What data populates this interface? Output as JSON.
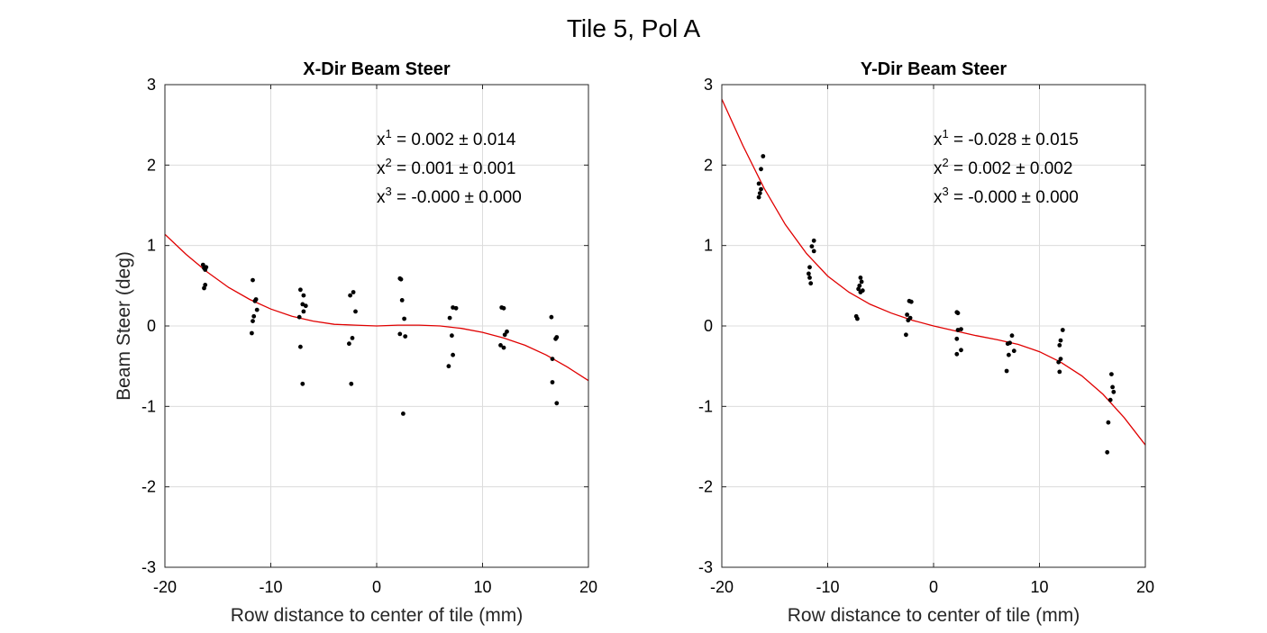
{
  "figure_title": "Tile 5, Pol A",
  "colors": {
    "fit": "#e00000",
    "points": "#000000",
    "grid": "#dcdcdc",
    "axes": "#262626"
  },
  "chart_data": [
    {
      "type": "scatter",
      "title": "X-Dir Beam Steer",
      "xlabel": "Row distance to center of tile (mm)",
      "ylabel": "Beam Steer (deg)",
      "xlim": [
        -20,
        20
      ],
      "ylim": [
        -3,
        3
      ],
      "xticks": [
        -20,
        -10,
        0,
        10,
        20
      ],
      "yticks": [
        -3,
        -2,
        -1,
        0,
        1,
        2,
        3
      ],
      "xtick_labels": [
        "-20",
        "-10",
        "0",
        "10",
        "20"
      ],
      "ytick_labels": [
        "-3",
        "-2",
        "-1",
        "0",
        "1",
        "2",
        "3"
      ],
      "grid": true,
      "annotations": [
        {
          "base": "x",
          "exp": "1",
          "text": " = 0.002 ± 0.014"
        },
        {
          "base": "x",
          "exp": "2",
          "text": " = 0.001 ± 0.001"
        },
        {
          "base": "x",
          "exp": "3",
          "text": " = -0.000 ± 0.000"
        }
      ],
      "fit": {
        "x": [
          -20,
          -18,
          -16,
          -14,
          -12,
          -10,
          -8,
          -6,
          -4,
          -2,
          0,
          2,
          4,
          6,
          8,
          10,
          12,
          14,
          16,
          18,
          20
        ],
        "y": [
          1.14,
          0.89,
          0.67,
          0.48,
          0.33,
          0.21,
          0.12,
          0.06,
          0.02,
          0.01,
          0.0,
          0.01,
          0.01,
          0.0,
          -0.03,
          -0.08,
          -0.15,
          -0.24,
          -0.36,
          -0.51,
          -0.68
        ]
      },
      "points": [
        [
          -16.4,
          0.76
        ],
        [
          -16.3,
          0.72
        ],
        [
          -16.2,
          0.7
        ],
        [
          -16.1,
          0.73
        ],
        [
          -16.2,
          0.51
        ],
        [
          -16.3,
          0.47
        ],
        [
          -11.7,
          0.57
        ],
        [
          -11.5,
          0.31
        ],
        [
          -11.4,
          0.33
        ],
        [
          -11.3,
          0.2
        ],
        [
          -11.6,
          0.12
        ],
        [
          -11.7,
          0.06
        ],
        [
          -11.8,
          -0.09
        ],
        [
          -7.2,
          0.45
        ],
        [
          -6.9,
          0.38
        ],
        [
          -7.0,
          0.27
        ],
        [
          -6.7,
          0.25
        ],
        [
          -6.9,
          0.18
        ],
        [
          -7.3,
          0.11
        ],
        [
          -7.2,
          -0.26
        ],
        [
          -7.0,
          -0.72
        ],
        [
          -2.5,
          0.38
        ],
        [
          -2.2,
          0.42
        ],
        [
          -2.0,
          0.18
        ],
        [
          -2.3,
          -0.15
        ],
        [
          -2.6,
          -0.22
        ],
        [
          -2.4,
          -0.72
        ],
        [
          2.2,
          0.59
        ],
        [
          2.3,
          0.58
        ],
        [
          2.4,
          0.32
        ],
        [
          2.6,
          0.09
        ],
        [
          2.2,
          -0.1
        ],
        [
          2.7,
          -0.13
        ],
        [
          2.5,
          -1.09
        ],
        [
          7.2,
          0.23
        ],
        [
          7.5,
          0.22
        ],
        [
          6.9,
          0.1
        ],
        [
          7.1,
          -0.12
        ],
        [
          7.2,
          -0.36
        ],
        [
          6.8,
          -0.5
        ],
        [
          11.8,
          0.23
        ],
        [
          12.0,
          0.22
        ],
        [
          12.3,
          -0.07
        ],
        [
          12.1,
          -0.11
        ],
        [
          11.7,
          -0.24
        ],
        [
          12.0,
          -0.27
        ],
        [
          16.5,
          0.11
        ],
        [
          17.0,
          -0.14
        ],
        [
          16.9,
          -0.16
        ],
        [
          16.6,
          -0.41
        ],
        [
          16.6,
          -0.7
        ],
        [
          17.0,
          -0.96
        ]
      ]
    },
    {
      "type": "scatter",
      "title": "Y-Dir Beam Steer",
      "xlabel": "Row distance to center of tile (mm)",
      "ylabel": "",
      "xlim": [
        -20,
        20
      ],
      "ylim": [
        -3,
        3
      ],
      "xticks": [
        -20,
        -10,
        0,
        10,
        20
      ],
      "yticks": [
        -3,
        -2,
        -1,
        0,
        1,
        2,
        3
      ],
      "xtick_labels": [
        "-20",
        "-10",
        "0",
        "10",
        "20"
      ],
      "ytick_labels": [
        "-3",
        "-2",
        "-1",
        "0",
        "1",
        "2",
        "3"
      ],
      "grid": true,
      "annotations": [
        {
          "base": "x",
          "exp": "1",
          "text": " = -0.028 ± 0.015"
        },
        {
          "base": "x",
          "exp": "2",
          "text": " = 0.002 ± 0.002"
        },
        {
          "base": "x",
          "exp": "3",
          "text": " = -0.000 ± 0.000"
        }
      ],
      "fit": {
        "x": [
          -20,
          -18,
          -16,
          -14,
          -12,
          -10,
          -8,
          -6,
          -4,
          -2,
          0,
          2,
          4,
          6,
          8,
          10,
          12,
          14,
          16,
          18,
          20
        ],
        "y": [
          2.82,
          2.24,
          1.71,
          1.26,
          0.9,
          0.62,
          0.42,
          0.27,
          0.16,
          0.07,
          0.0,
          -0.06,
          -0.12,
          -0.17,
          -0.23,
          -0.32,
          -0.45,
          -0.62,
          -0.85,
          -1.14,
          -1.48
        ]
      },
      "points": [
        [
          -16.1,
          2.11
        ],
        [
          -16.3,
          1.95
        ],
        [
          -16.5,
          1.77
        ],
        [
          -16.3,
          1.7
        ],
        [
          -16.4,
          1.65
        ],
        [
          -16.5,
          1.6
        ],
        [
          -11.3,
          1.06
        ],
        [
          -11.5,
          0.99
        ],
        [
          -11.3,
          0.93
        ],
        [
          -11.7,
          0.73
        ],
        [
          -11.8,
          0.65
        ],
        [
          -11.7,
          0.6
        ],
        [
          -11.6,
          0.53
        ],
        [
          -6.9,
          0.6
        ],
        [
          -6.8,
          0.55
        ],
        [
          -7.0,
          0.5
        ],
        [
          -7.1,
          0.46
        ],
        [
          -6.7,
          0.44
        ],
        [
          -6.9,
          0.42
        ],
        [
          -7.3,
          0.12
        ],
        [
          -7.2,
          0.09
        ],
        [
          -2.3,
          0.31
        ],
        [
          -2.1,
          0.3
        ],
        [
          -2.5,
          0.14
        ],
        [
          -2.2,
          0.1
        ],
        [
          -2.4,
          0.07
        ],
        [
          -2.6,
          -0.11
        ],
        [
          2.2,
          0.17
        ],
        [
          2.3,
          0.16
        ],
        [
          2.6,
          -0.04
        ],
        [
          2.3,
          -0.05
        ],
        [
          2.2,
          -0.16
        ],
        [
          2.6,
          -0.3
        ],
        [
          2.2,
          -0.35
        ],
        [
          7.4,
          -0.12
        ],
        [
          7.2,
          -0.21
        ],
        [
          7.0,
          -0.22
        ],
        [
          7.6,
          -0.31
        ],
        [
          7.1,
          -0.36
        ],
        [
          6.9,
          -0.56
        ],
        [
          12.2,
          -0.05
        ],
        [
          12.0,
          -0.18
        ],
        [
          11.9,
          -0.24
        ],
        [
          12.0,
          -0.41
        ],
        [
          11.8,
          -0.45
        ],
        [
          11.9,
          -0.57
        ],
        [
          16.8,
          -0.6
        ],
        [
          16.9,
          -0.76
        ],
        [
          17.0,
          -0.82
        ],
        [
          16.7,
          -0.92
        ],
        [
          16.5,
          -1.2
        ],
        [
          16.4,
          -1.57
        ]
      ]
    }
  ]
}
